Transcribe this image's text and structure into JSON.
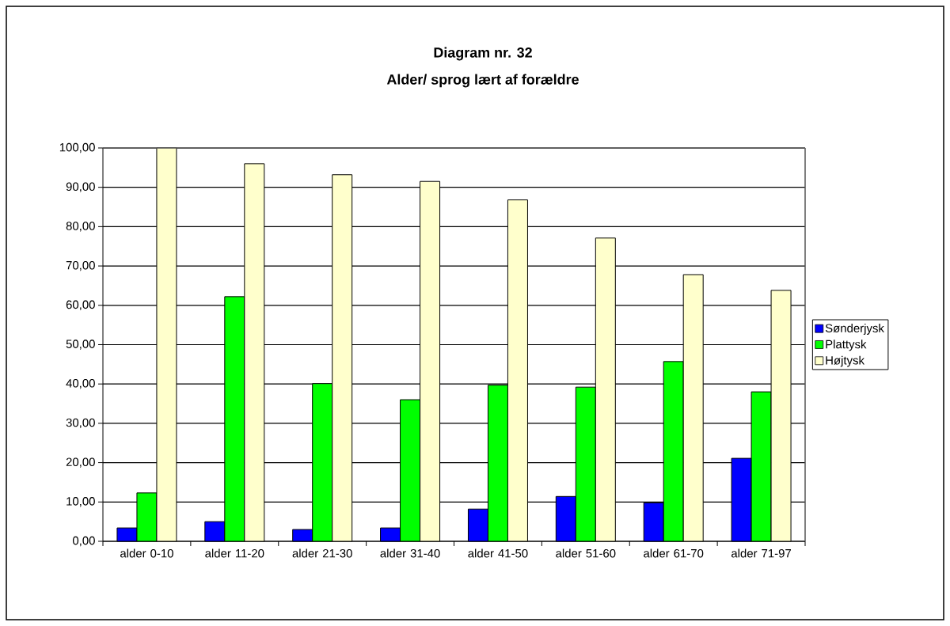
{
  "chart_data": {
    "type": "bar",
    "title": "Diagram nr. 32",
    "subtitle": "Alder/ sprog lært af forældre",
    "categories": [
      "alder 0-10",
      "alder 11-20",
      "alder 21-30",
      "alder 31-40",
      "alder 41-50",
      "alder 51-60",
      "alder 61-70",
      "alder 71-97"
    ],
    "series": [
      {
        "name": "Sønderjysk",
        "color": "#0000ff",
        "values": [
          3.4,
          5.0,
          3.0,
          3.4,
          8.2,
          11.4,
          9.8,
          21.1
        ]
      },
      {
        "name": "Plattysk",
        "color": "#00ff00",
        "values": [
          12.3,
          62.2,
          40.1,
          36.0,
          39.7,
          39.2,
          45.7,
          38.0
        ]
      },
      {
        "name": "Højtysk",
        "color": "#ffffcc",
        "values": [
          100.0,
          96.0,
          93.2,
          91.5,
          86.8,
          77.1,
          67.8,
          63.8
        ]
      }
    ],
    "ylim": [
      0,
      100
    ],
    "yticks": [
      {
        "value": 0,
        "label": "0,00"
      },
      {
        "value": 10,
        "label": "10,00"
      },
      {
        "value": 20,
        "label": "20,00"
      },
      {
        "value": 30,
        "label": "30,00"
      },
      {
        "value": 40,
        "label": "40,00"
      },
      {
        "value": 50,
        "label": "50,00"
      },
      {
        "value": 60,
        "label": "60,00"
      },
      {
        "value": 70,
        "label": "70,00"
      },
      {
        "value": 80,
        "label": "80,00"
      },
      {
        "value": 90,
        "label": "90,00"
      },
      {
        "value": 100,
        "label": "100,00"
      }
    ],
    "grid": "y",
    "legend": "right"
  }
}
